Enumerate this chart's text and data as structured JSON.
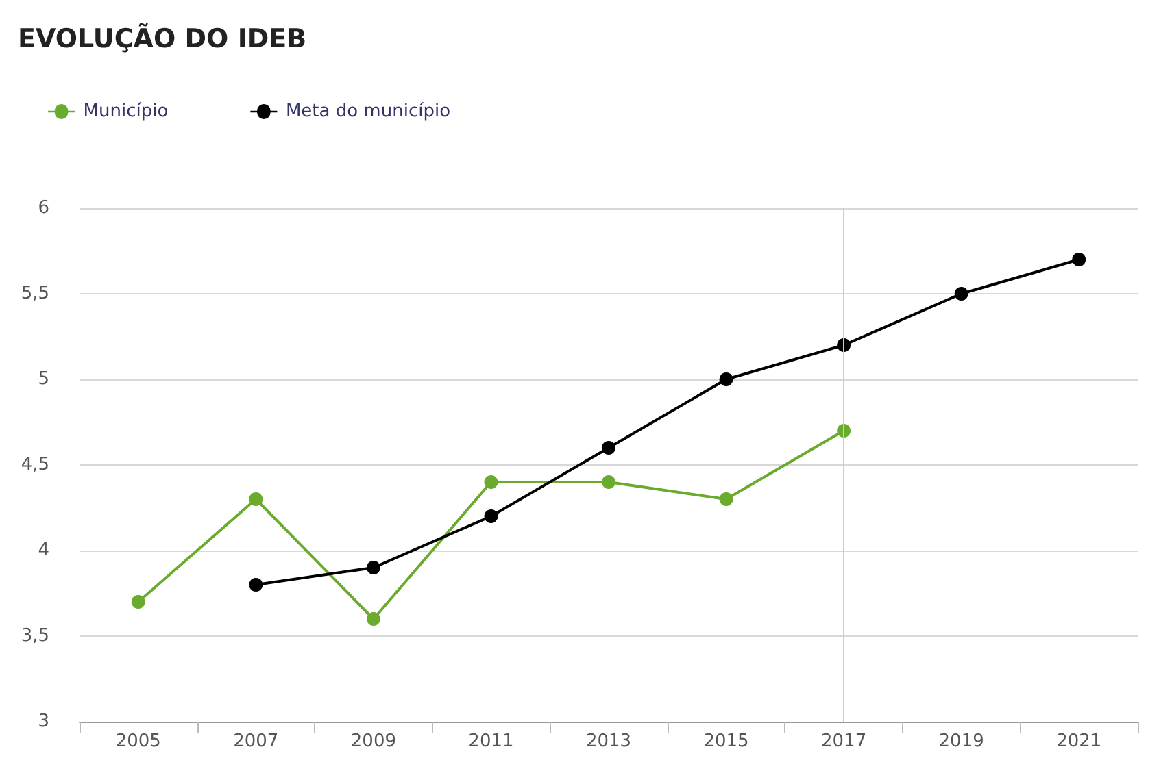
{
  "chart_data": {
    "type": "line",
    "title": "EVOLUÇÃO DO IDEB",
    "categories": [
      "2005",
      "2007",
      "2009",
      "2011",
      "2013",
      "2015",
      "2017",
      "2019",
      "2021"
    ],
    "series": [
      {
        "name": "Município",
        "color": "#6aab2e",
        "values": [
          3.7,
          4.3,
          3.6,
          4.4,
          4.4,
          4.3,
          4.7,
          null,
          null
        ]
      },
      {
        "name": "Meta do município",
        "color": "#000000",
        "values": [
          null,
          3.8,
          3.9,
          4.2,
          4.6,
          5.0,
          5.2,
          5.5,
          5.7
        ]
      }
    ],
    "ylim": [
      3,
      6
    ],
    "yticks": [
      3,
      {
        "value": 3.5,
        "label": "3,5"
      },
      4,
      {
        "value": 4.5,
        "label": "4,5"
      },
      5,
      {
        "value": 5.5,
        "label": "5,5"
      },
      6
    ],
    "ref_lines": [
      {
        "axis": "x",
        "value": "2017",
        "color": "#cccccc"
      }
    ],
    "grid": "y",
    "legend": "top left",
    "marker": "circle",
    "line_style": "solid"
  }
}
